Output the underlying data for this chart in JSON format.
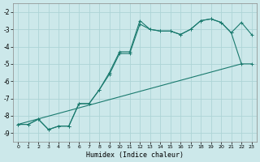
{
  "xlabel": "Humidex (Indice chaleur)",
  "background_color": "#cce8ea",
  "grid_color": "#add4d6",
  "line_color": "#1a7a6e",
  "xlim": [
    -0.5,
    23.5
  ],
  "ylim": [
    -9.5,
    -1.5
  ],
  "yticks": [
    -9,
    -8,
    -7,
    -6,
    -5,
    -4,
    -3,
    -2
  ],
  "xticks": [
    0,
    1,
    2,
    3,
    4,
    5,
    6,
    7,
    8,
    9,
    10,
    11,
    12,
    13,
    14,
    15,
    16,
    17,
    18,
    19,
    20,
    21,
    22,
    23
  ],
  "line1_x": [
    0,
    1,
    2,
    3,
    4,
    5,
    6,
    7,
    8,
    9,
    10,
    11,
    12,
    13,
    14,
    15,
    16,
    17,
    18,
    19,
    20,
    21,
    22,
    23
  ],
  "line1_y": [
    -8.5,
    -8.5,
    -8.2,
    -8.8,
    -8.6,
    -8.6,
    -7.3,
    -7.3,
    -6.5,
    -5.5,
    -4.3,
    -4.3,
    -2.5,
    -3.0,
    -3.1,
    -3.1,
    -3.3,
    -3.0,
    -2.5,
    -2.4,
    -2.6,
    -3.2,
    -2.6,
    -3.3
  ],
  "line2_x": [
    0,
    1,
    2,
    3,
    4,
    5,
    6,
    7,
    8,
    9,
    10,
    11,
    12,
    13,
    14,
    15,
    16,
    17,
    18,
    19,
    20,
    21,
    22,
    23
  ],
  "line2_y": [
    -8.5,
    -8.5,
    -8.2,
    -8.8,
    -8.6,
    -8.6,
    -7.3,
    -7.3,
    -6.5,
    -5.6,
    -4.4,
    -4.4,
    -2.7,
    -3.0,
    -3.1,
    -3.1,
    -3.3,
    -3.0,
    -2.5,
    -2.4,
    -2.6,
    -3.2,
    -5.0,
    -5.0
  ],
  "line3_x": [
    0,
    22
  ],
  "line3_y": [
    -8.5,
    -5.0
  ]
}
